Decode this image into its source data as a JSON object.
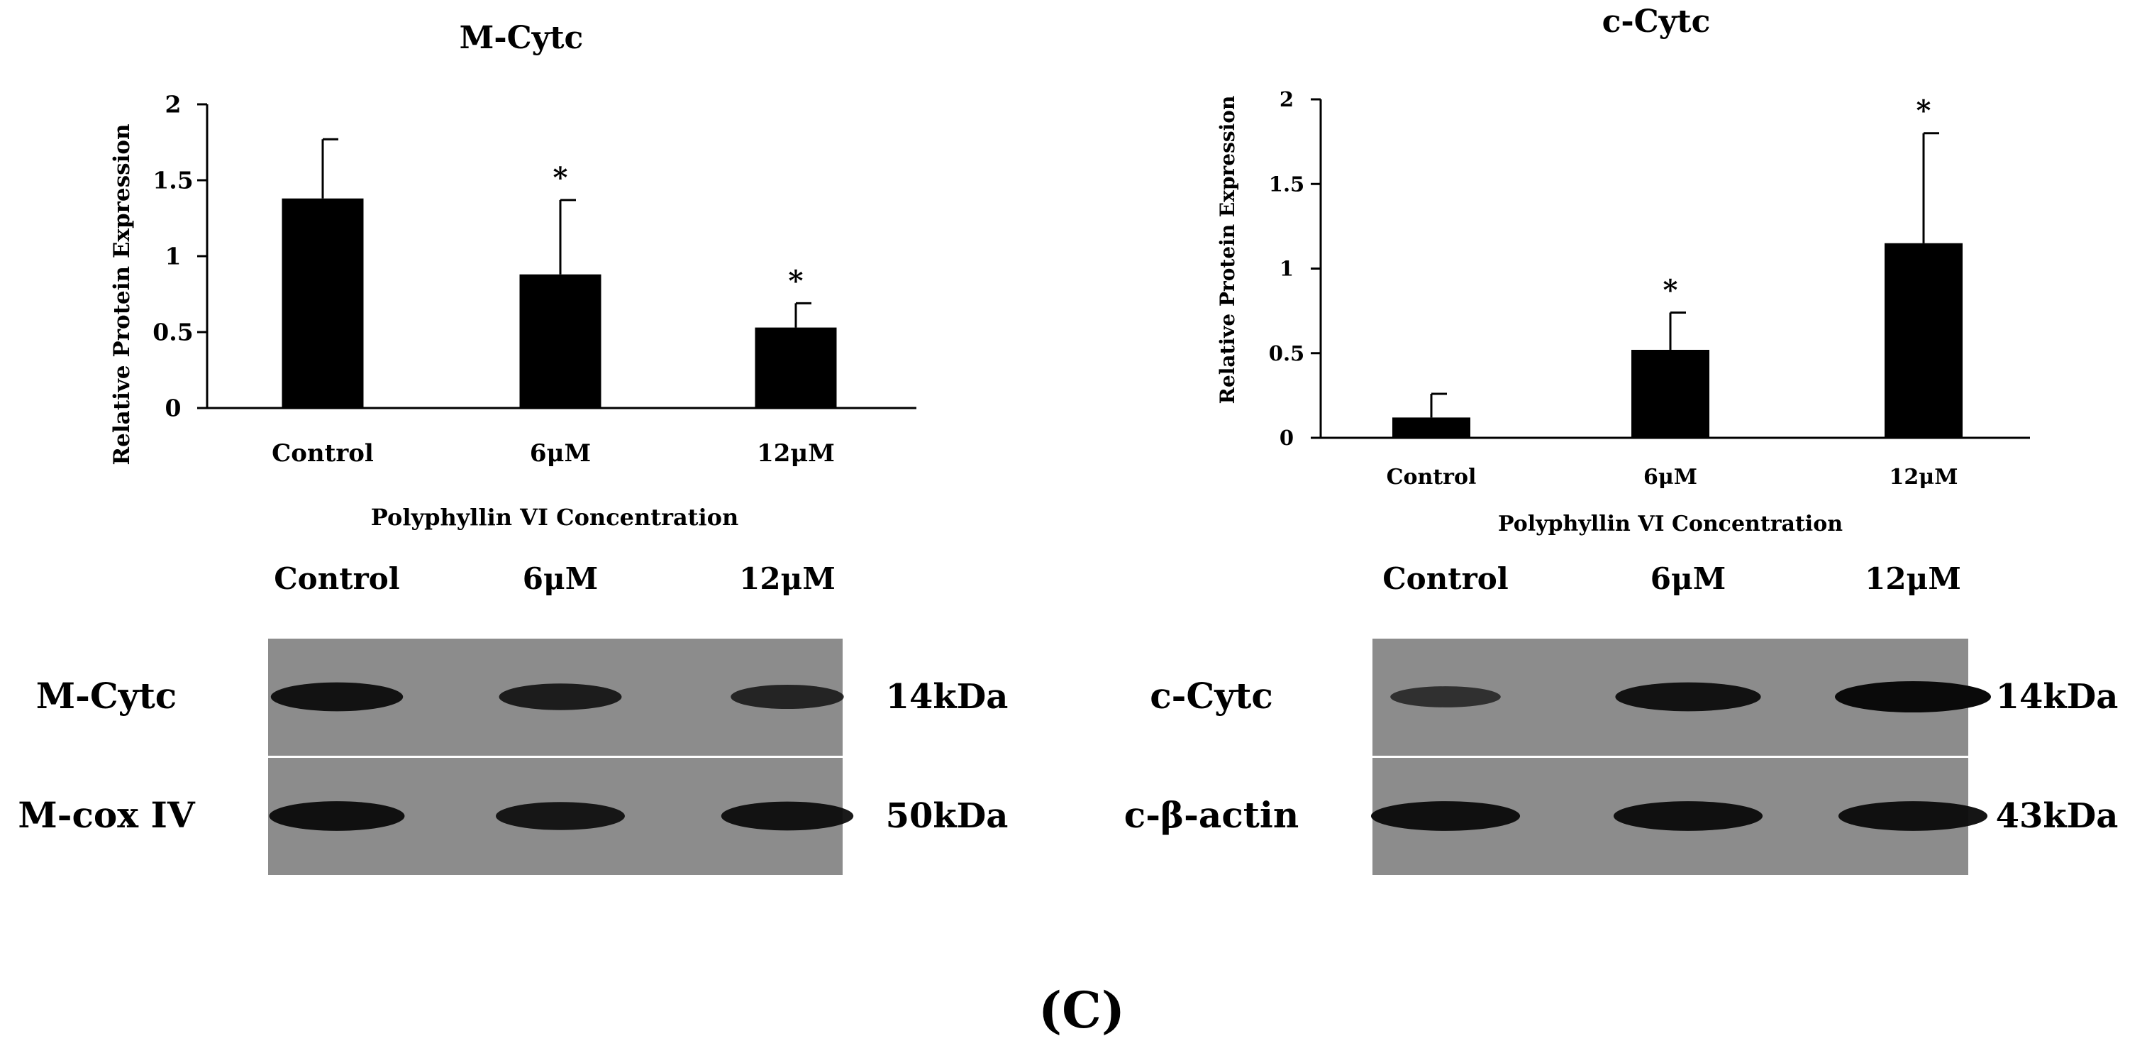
{
  "chart_data": [
    {
      "type": "bar",
      "title": "M-Cytc",
      "xlabel": "Polyphyllin VI Concentration",
      "ylabel": "Relative Protein Expression",
      "categories": [
        "Control",
        "6μM",
        "12μM"
      ],
      "values": [
        1.38,
        0.88,
        0.53
      ],
      "error": [
        0.39,
        0.49,
        0.16
      ],
      "significance": [
        "",
        "*",
        "*"
      ],
      "yticks": [
        "0",
        "0.5",
        "1",
        "1.5",
        "2"
      ],
      "ylim": [
        0,
        2
      ],
      "grid": false,
      "legend": "none"
    },
    {
      "type": "bar",
      "title": "c-Cytc",
      "xlabel": "Polyphyllin VI Concentration",
      "ylabel": "Relative Protein Expression",
      "categories": [
        "Control",
        "6μM",
        "12μM"
      ],
      "values": [
        0.12,
        0.52,
        1.15
      ],
      "error": [
        0.14,
        0.22,
        0.65
      ],
      "significance": [
        "",
        "*",
        "*"
      ],
      "yticks": [
        "0",
        "0.5",
        "1",
        "1.5",
        "2"
      ],
      "ylim": [
        0,
        2
      ],
      "grid": false,
      "legend": "none"
    }
  ],
  "blots": [
    {
      "lanes": [
        "Control",
        "6μM",
        "12μM"
      ],
      "rows": [
        {
          "label": "M-Cytc",
          "size": "14kDa",
          "intensity": [
            0.85,
            0.7,
            0.55
          ]
        },
        {
          "label": "M-cox IV",
          "size": "50kDa",
          "intensity": [
            0.9,
            0.8,
            0.85
          ]
        }
      ]
    },
    {
      "lanes": [
        "Control",
        "6μM",
        "12μM"
      ],
      "rows": [
        {
          "label": "c-Cytc",
          "size": "14kDa",
          "intensity": [
            0.35,
            0.85,
            1.0
          ]
        },
        {
          "label": "c-β-actin",
          "size": "43kDa",
          "intensity": [
            0.9,
            0.9,
            0.9
          ]
        }
      ]
    }
  ],
  "panel_label": "(C)",
  "colors": {
    "bar": "#000000",
    "blot_bg": "#8c8c8c",
    "band": "#0a0a0a"
  }
}
